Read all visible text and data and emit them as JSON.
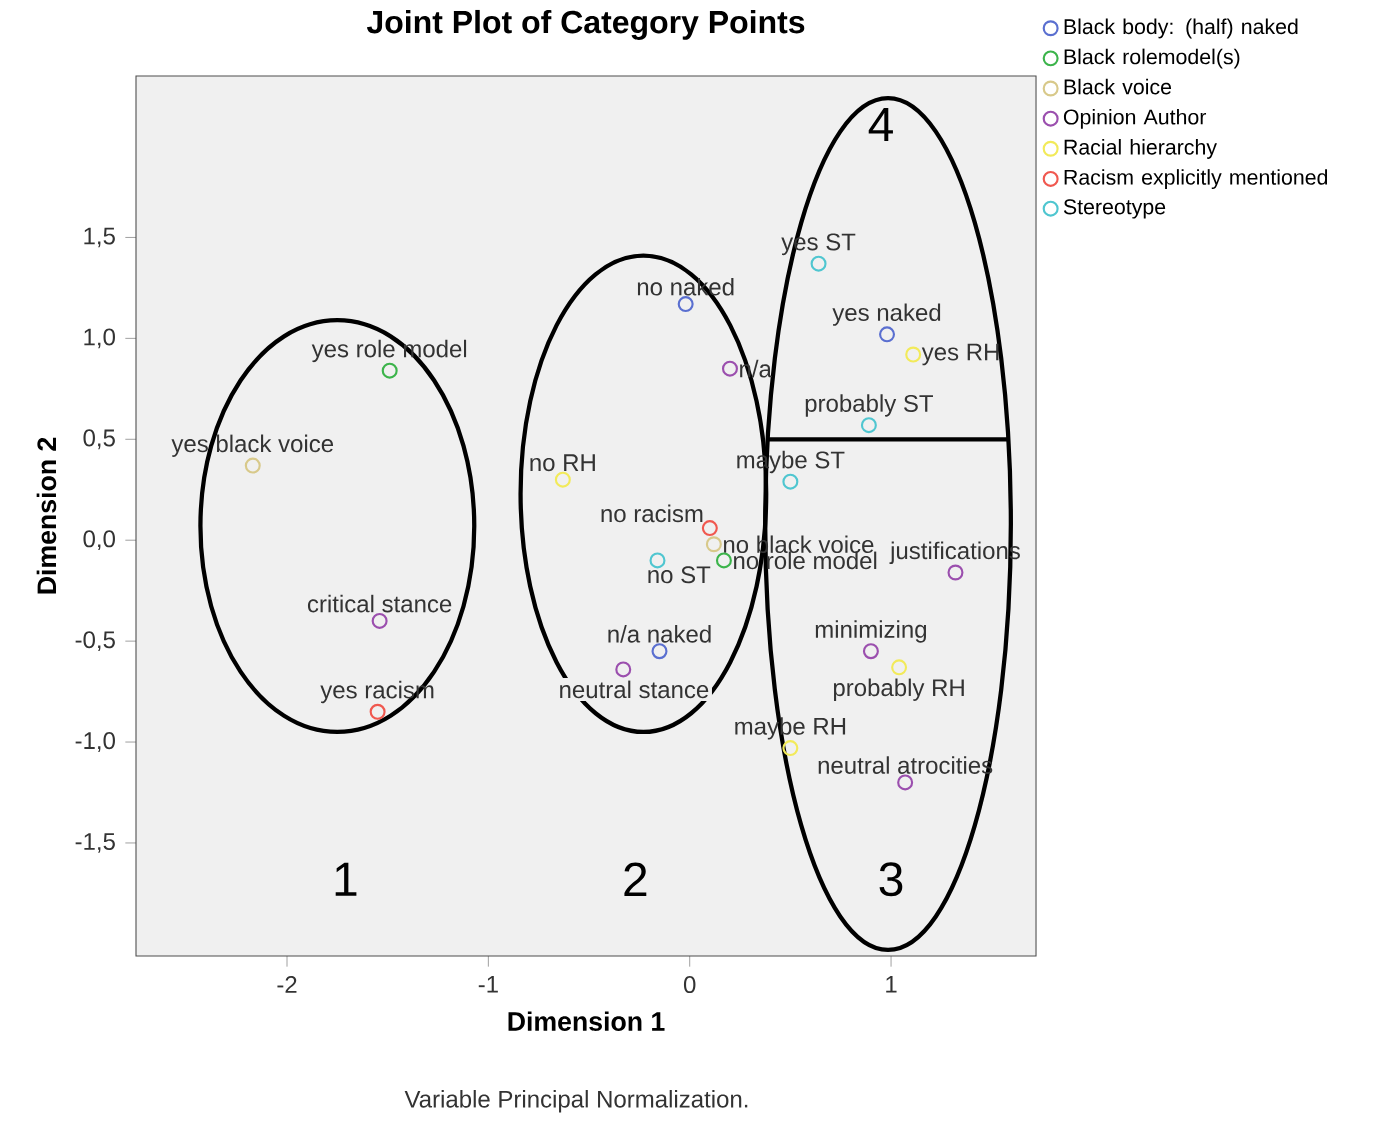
{
  "chart_data": {
    "type": "scatter",
    "title": "Joint Plot of Category Points",
    "xlabel": "Dimension 1",
    "ylabel": "Dimension 2",
    "xlim": [
      -2.75,
      1.72
    ],
    "ylim": [
      -2.06,
      2.3
    ],
    "xticks": [
      -2,
      -1,
      0,
      1
    ],
    "yticks": [
      {
        "value": -1.5,
        "label": "-1,5"
      },
      {
        "value": -1.0,
        "label": "-1,0"
      },
      {
        "value": -0.5,
        "label": "-0,5"
      },
      {
        "value": 0.0,
        "label": "0,0"
      },
      {
        "value": 0.5,
        "label": "0,5"
      },
      {
        "value": 1.0,
        "label": "1,0"
      },
      {
        "value": 1.5,
        "label": "1,5"
      }
    ],
    "grid": false,
    "legend": "top right",
    "marker": "circle",
    "series": [
      {
        "name": "Black body: (half) naked",
        "color": "#5a6fd0",
        "x": [
          -0.02,
          0.98,
          -0.15
        ],
        "values": [
          1.17,
          1.02,
          -0.55
        ]
      },
      {
        "name": "Black rolemodel(s)",
        "color": "#3cb44b",
        "x": [
          -1.49,
          0.17
        ],
        "values": [
          0.84,
          -0.1
        ]
      },
      {
        "name": "Black voice",
        "color": "#d8c98a",
        "x": [
          -2.17,
          0.12
        ],
        "values": [
          0.37,
          -0.02
        ]
      },
      {
        "name": "Opinion Author",
        "color": "#9b4fae",
        "x": [
          -1.54,
          0.2,
          1.32,
          -0.33,
          0.9,
          1.07
        ],
        "values": [
          -0.4,
          0.85,
          -0.16,
          -0.64,
          -0.55,
          -1.2
        ]
      },
      {
        "name": "Racial hierarchy",
        "color": "#f2ea5a",
        "x": [
          -0.63,
          1.11,
          1.04,
          0.5
        ],
        "values": [
          0.3,
          0.92,
          -0.63,
          -1.03
        ]
      },
      {
        "name": "Racism explicitly mentioned",
        "color": "#f0584f",
        "x": [
          -1.55,
          0.1
        ],
        "values": [
          -0.85,
          0.06
        ]
      },
      {
        "name": "Stereotype",
        "color": "#4fc6d0",
        "x": [
          0.64,
          0.89,
          0.5,
          -0.16
        ],
        "values": [
          1.37,
          0.57,
          0.29,
          -0.1
        ]
      }
    ],
    "annotations": [
      {
        "text": "no naked",
        "x": -0.02,
        "y": 1.17
      },
      {
        "text": "yes naked",
        "x": 0.98,
        "y": 1.02
      },
      {
        "text": "n/a naked",
        "x": -0.15,
        "y": -0.55
      },
      {
        "text": "yes role model",
        "x": -1.49,
        "y": 0.84
      },
      {
        "text": "no role model",
        "x": 0.17,
        "y": -0.1
      },
      {
        "text": "yes black voice",
        "x": -2.17,
        "y": 0.37
      },
      {
        "text": "no black voice",
        "x": 0.12,
        "y": -0.02
      },
      {
        "text": "critical stance",
        "x": -1.54,
        "y": -0.4
      },
      {
        "text": "n/a",
        "x": 0.2,
        "y": 0.85
      },
      {
        "text": "justifications",
        "x": 1.32,
        "y": -0.16
      },
      {
        "text": "neutral stance",
        "x": -0.33,
        "y": -0.64
      },
      {
        "text": "minimizing",
        "x": 0.9,
        "y": -0.55
      },
      {
        "text": "neutral atrocities",
        "x": 1.07,
        "y": -1.2
      },
      {
        "text": "no RH",
        "x": -0.63,
        "y": 0.3
      },
      {
        "text": "yes RH",
        "x": 1.11,
        "y": 0.92
      },
      {
        "text": "probably RH",
        "x": 1.04,
        "y": -0.63
      },
      {
        "text": "maybe RH",
        "x": 0.5,
        "y": -1.03
      },
      {
        "text": "yes racism",
        "x": -1.55,
        "y": -0.85
      },
      {
        "text": "no racism",
        "x": 0.1,
        "y": 0.06
      },
      {
        "text": "yes ST",
        "x": 0.64,
        "y": 1.37
      },
      {
        "text": "probably ST",
        "x": 0.89,
        "y": 0.57
      },
      {
        "text": "maybe ST",
        "x": 0.5,
        "y": 0.29
      },
      {
        "text": "no ST",
        "x": -0.16,
        "y": -0.1
      },
      "1",
      "2",
      "3",
      "4",
      "Variable Principal Normalization."
    ]
  }
}
